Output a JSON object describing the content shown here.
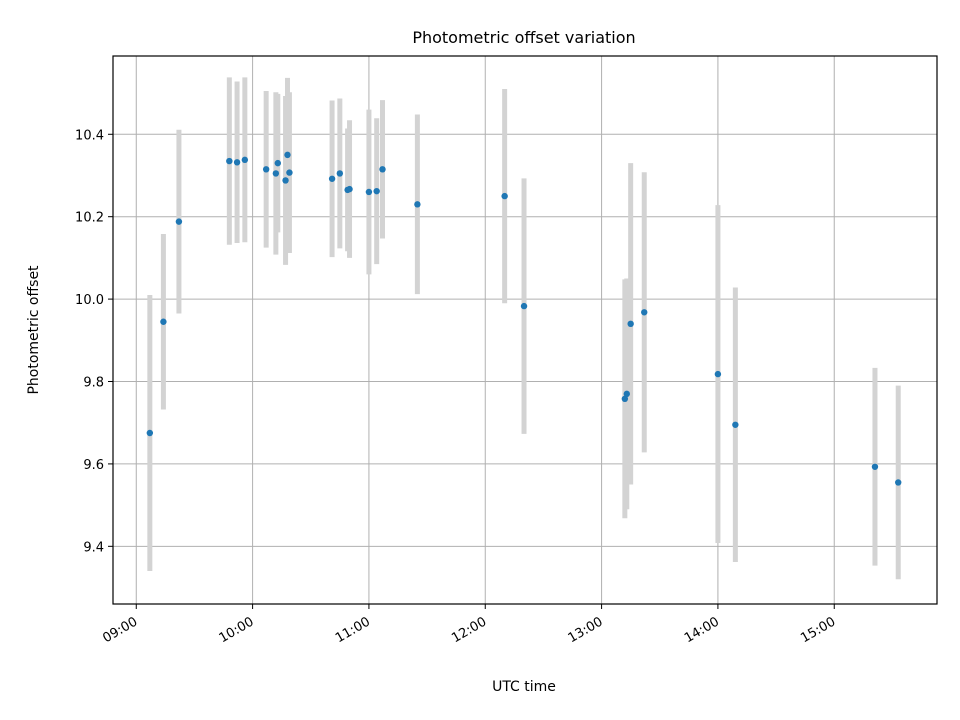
{
  "chart_data": {
    "type": "scatter",
    "title": "Photometric offset variation",
    "xlabel": "UTC time",
    "ylabel": "Photometric offset",
    "x_tick_labels": [
      "09:00",
      "10:00",
      "11:00",
      "12:00",
      "13:00",
      "14:00",
      "15:00"
    ],
    "y_tick_labels": [
      "9.4",
      "9.6",
      "9.8",
      "10.0",
      "10.2",
      "10.4"
    ],
    "xlim": [
      "08:48",
      "15:53"
    ],
    "ylim": [
      9.26,
      10.59
    ],
    "grid": true,
    "marker_color": "#1f77b4",
    "errorbar_color": "#d3d3d3",
    "points": [
      {
        "time": "09:07",
        "y": 9.675,
        "err": 0.335
      },
      {
        "time": "09:14",
        "y": 9.945,
        "err": 0.213
      },
      {
        "time": "09:22",
        "y": 10.188,
        "err": 0.223
      },
      {
        "time": "09:48",
        "y": 10.335,
        "err": 0.203
      },
      {
        "time": "09:52",
        "y": 10.332,
        "err": 0.196
      },
      {
        "time": "09:56",
        "y": 10.338,
        "err": 0.2
      },
      {
        "time": "10:07",
        "y": 10.315,
        "err": 0.19
      },
      {
        "time": "10:12",
        "y": 10.305,
        "err": 0.197
      },
      {
        "time": "10:13",
        "y": 10.33,
        "err": 0.168
      },
      {
        "time": "10:17",
        "y": 10.288,
        "err": 0.205
      },
      {
        "time": "10:18",
        "y": 10.35,
        "err": 0.187
      },
      {
        "time": "10:19",
        "y": 10.307,
        "err": 0.195
      },
      {
        "time": "10:41",
        "y": 10.292,
        "err": 0.19
      },
      {
        "time": "10:45",
        "y": 10.305,
        "err": 0.182
      },
      {
        "time": "10:49",
        "y": 10.265,
        "err": 0.149
      },
      {
        "time": "10:50",
        "y": 10.267,
        "err": 0.167
      },
      {
        "time": "11:00",
        "y": 10.26,
        "err": 0.2
      },
      {
        "time": "11:04",
        "y": 10.262,
        "err": 0.177
      },
      {
        "time": "11:07",
        "y": 10.315,
        "err": 0.168
      },
      {
        "time": "11:25",
        "y": 10.23,
        "err": 0.218
      },
      {
        "time": "12:10",
        "y": 10.25,
        "err": 0.26
      },
      {
        "time": "12:20",
        "y": 9.983,
        "err": 0.31
      },
      {
        "time": "13:12",
        "y": 9.758,
        "err": 0.29
      },
      {
        "time": "13:13",
        "y": 9.77,
        "err": 0.28
      },
      {
        "time": "13:15",
        "y": 9.94,
        "err": 0.39
      },
      {
        "time": "13:22",
        "y": 9.968,
        "err": 0.34
      },
      {
        "time": "14:00",
        "y": 9.818,
        "err": 0.41
      },
      {
        "time": "14:09",
        "y": 9.695,
        "err": 0.333
      },
      {
        "time": "15:21",
        "y": 9.593,
        "err": 0.24
      },
      {
        "time": "15:33",
        "y": 9.555,
        "err": 0.235
      }
    ]
  }
}
